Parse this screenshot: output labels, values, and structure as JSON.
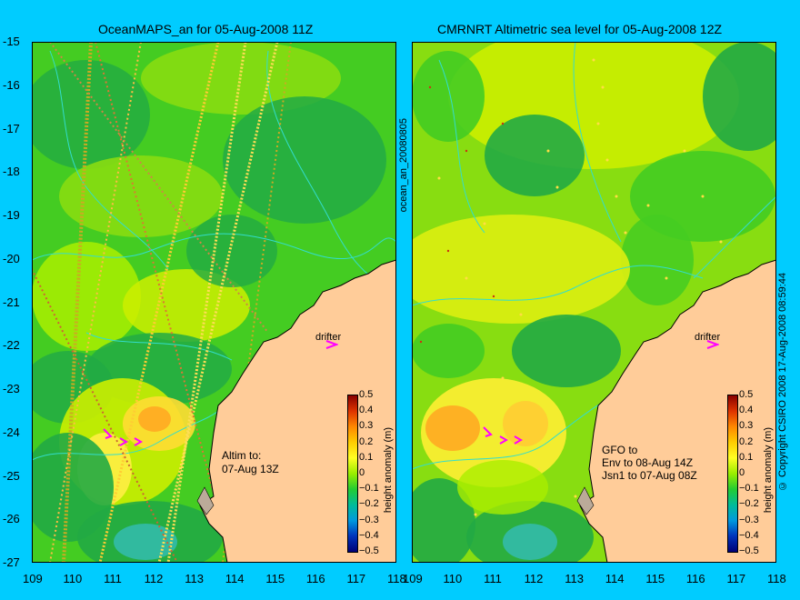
{
  "left_panel": {
    "title": "OceanMAPS_an for 05-Aug-2008 11Z",
    "note_line1": "Altim to:",
    "note_line2": "07-Aug 13Z",
    "drifter_label": "drifter"
  },
  "right_panel": {
    "title": "CMRNRT Altimetric sea level  for 05-Aug-2008 12Z",
    "note_line1": "GFO to",
    "note_line2": "Env to 08-Aug 14Z",
    "note_line3": "Jsn1 to 07-Aug 08Z",
    "drifter_label": "drifter"
  },
  "axes": {
    "lat_ticks": [
      "-15",
      "-16",
      "-17",
      "-18",
      "-19",
      "-20",
      "-21",
      "-22",
      "-23",
      "-24",
      "-25",
      "-26",
      "-27"
    ],
    "lon_ticks_left": [
      "109",
      "110",
      "111",
      "112",
      "113",
      "114",
      "115",
      "116",
      "117",
      "118"
    ],
    "lon_ticks_right": [
      "109",
      "110",
      "111",
      "112",
      "113",
      "114",
      "115",
      "116",
      "117",
      "118"
    ]
  },
  "colorbar": {
    "label": "height anomaly (m)",
    "ticks": [
      "0.5",
      "0.4",
      "0.3",
      "0.2",
      "0.1",
      "0",
      "−0.1",
      "−0.2",
      "−0.3",
      "−0.4",
      "−0.5"
    ]
  },
  "side_text": {
    "middle_vertical": "ocean_an_20080805",
    "right_vertical": "© Copyright CSIRO 2008   17-Aug-2008 08:59:44"
  },
  "colors": {
    "background": "#00ccff",
    "land": "#ffcc99",
    "ocean_base": "#44cc22",
    "drifter_marker": "#ff00ff"
  }
}
